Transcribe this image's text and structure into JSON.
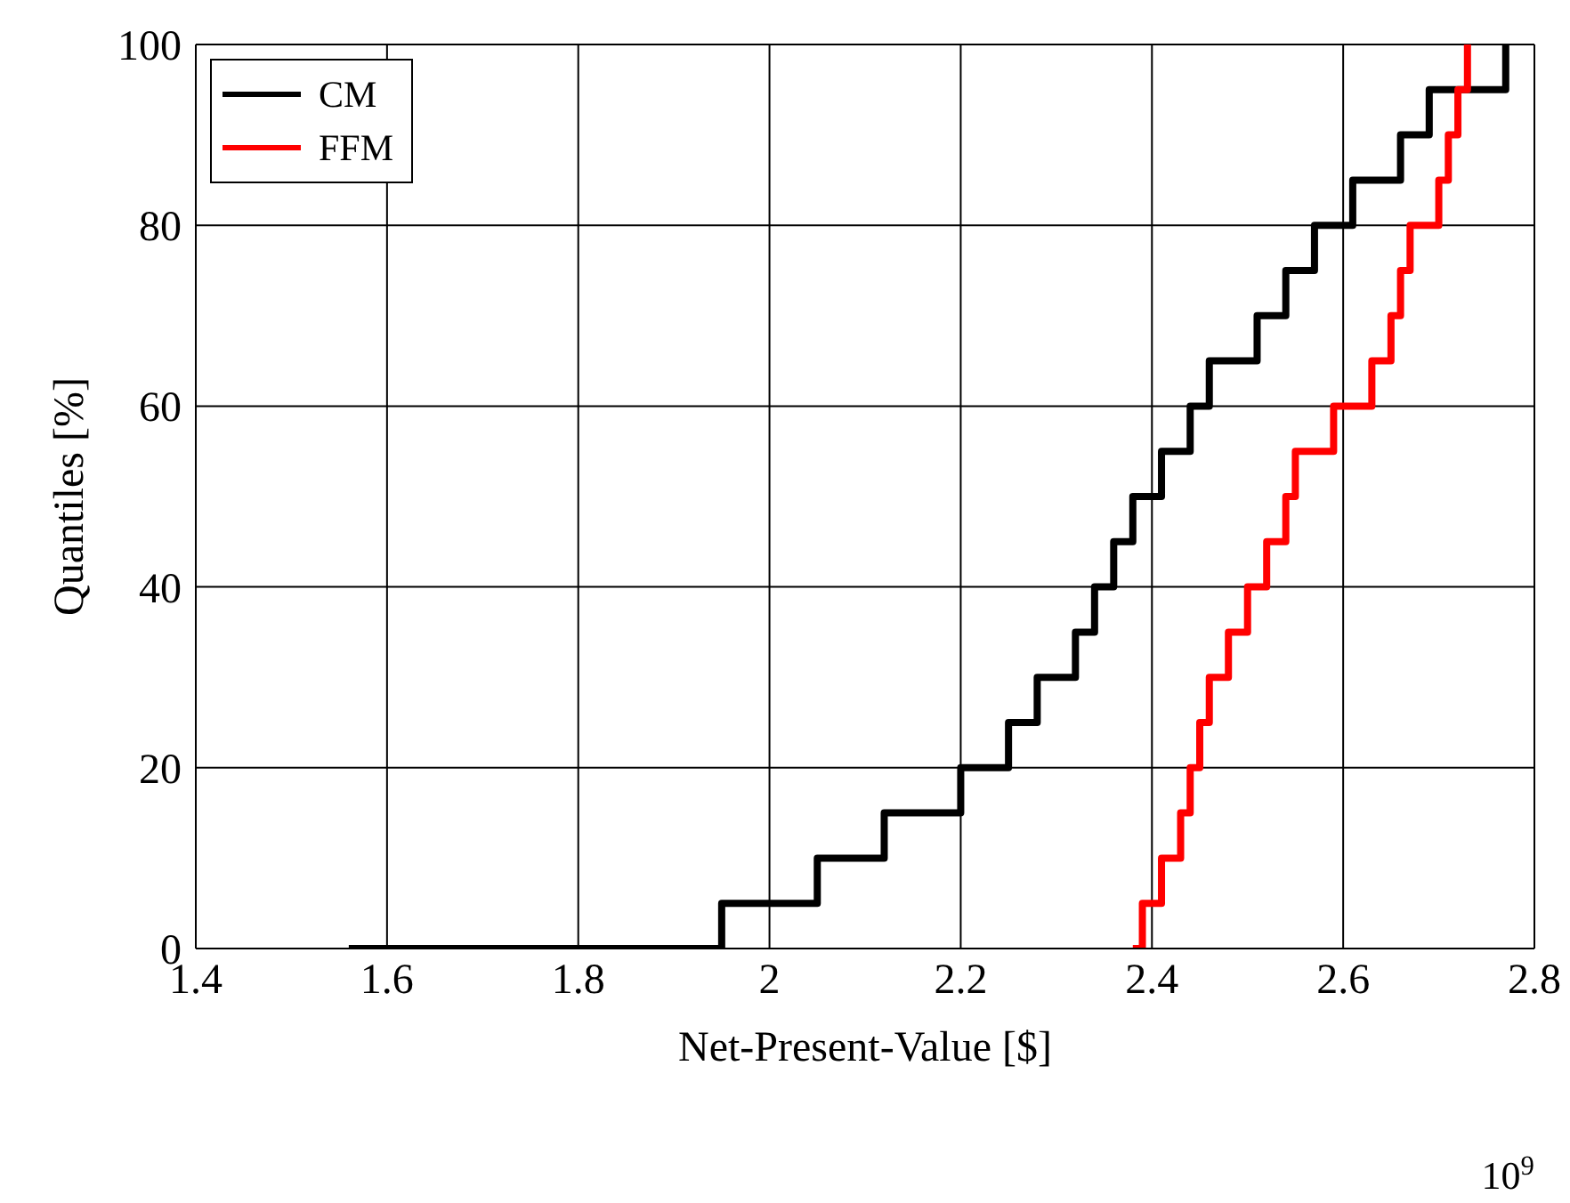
{
  "chart_data": {
    "type": "step",
    "xlabel": "Net-Present-Value [$]",
    "ylabel": "Quantiles [%]",
    "annotations": [
      "10$^{9}$"
    ],
    "series": [
      {
        "name": "CM",
        "color": "#000000",
        "x": [
          1.56,
          1.95,
          2.05,
          2.12,
          2.2,
          2.25,
          2.28,
          2.32,
          2.34,
          2.36,
          2.38,
          2.41,
          2.44,
          2.46,
          2.51,
          2.54,
          2.57,
          2.61,
          2.66,
          2.69,
          2.77
        ],
        "values": [
          0,
          5,
          10,
          15,
          20,
          25,
          30,
          35,
          40,
          45,
          50,
          55,
          60,
          65,
          70,
          75,
          80,
          85,
          90,
          95,
          100
        ]
      },
      {
        "name": "FFM",
        "color": "#ff0000",
        "x": [
          2.38,
          2.39,
          2.41,
          2.43,
          2.44,
          2.45,
          2.46,
          2.48,
          2.5,
          2.52,
          2.54,
          2.55,
          2.59,
          2.63,
          2.65,
          2.66,
          2.67,
          2.7,
          2.71,
          2.72,
          2.73
        ],
        "values": [
          0,
          5,
          10,
          15,
          20,
          25,
          30,
          35,
          40,
          45,
          50,
          55,
          60,
          65,
          70,
          75,
          80,
          85,
          90,
          95,
          100
        ]
      }
    ],
    "xlim": [
      1.4,
      2.8
    ],
    "xticks": [
      1.4,
      1.6,
      1.8,
      2,
      2.2,
      2.4,
      2.6,
      2.8
    ],
    "ylim": [
      0,
      100
    ],
    "yticks": [
      0,
      20,
      40,
      60,
      80,
      100
    ],
    "grid": true,
    "legend": "top left",
    "line_style": "solid",
    "marker": "none"
  }
}
